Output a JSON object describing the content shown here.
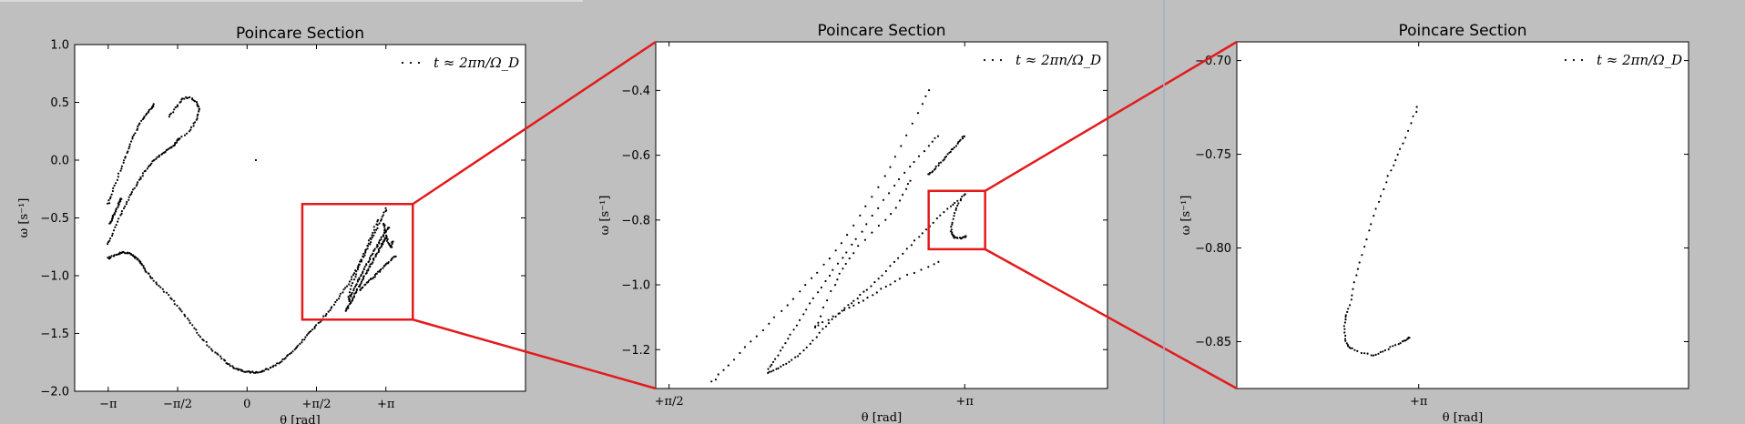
{
  "colors": {
    "background": "#bfbfbf",
    "plot_bg": "#ffffff",
    "marker": "#000000",
    "zoom_box": "#e31a1c"
  },
  "chart_data": [
    {
      "type": "scatter",
      "title": "Poincare Section",
      "xlabel": "θ [rad]",
      "ylabel": "ω [s⁻¹]",
      "legend": {
        "label": "t ≈ 2πn/Ω_D",
        "placement": "top-right"
      },
      "xlim": [
        -3.9,
        6.3
      ],
      "ylim": [
        -2.0,
        1.0
      ],
      "xticks": [
        {
          "v": -3.1416,
          "label": "−π"
        },
        {
          "v": -1.5708,
          "label": "−π/2"
        },
        {
          "v": 0,
          "label": "0"
        },
        {
          "v": 1.5708,
          "label": "+π/2"
        },
        {
          "v": 3.1416,
          "label": "+π"
        }
      ],
      "yticks": [
        {
          "v": 1.0,
          "label": "1.0"
        },
        {
          "v": 0.5,
          "label": "0.5"
        },
        {
          "v": 0.0,
          "label": "0.0"
        },
        {
          "v": -0.5,
          "label": "−0.5"
        },
        {
          "v": -1.0,
          "label": "−1.0"
        },
        {
          "v": -1.5,
          "label": "−1.5"
        },
        {
          "v": -2.0,
          "label": "−2.0"
        }
      ],
      "zoom_box": {
        "x": [
          1.25,
          3.75
        ],
        "y": [
          -1.38,
          -0.38
        ]
      },
      "curves": [
        {
          "points": [
            [
              -3.14,
              -0.38
            ],
            [
              -2.8,
              -0.02
            ],
            [
              -2.45,
              0.3
            ],
            [
              -2.1,
              0.48
            ]
          ],
          "n": 50
        },
        {
          "points": [
            [
              -3.1,
              -0.55
            ],
            [
              -2.85,
              -0.33
            ]
          ],
          "n": 30
        },
        {
          "points": [
            [
              -3.14,
              -0.72
            ],
            [
              -2.8,
              -0.42
            ],
            [
              -2.45,
              -0.18
            ],
            [
              -2.1,
              0.0
            ],
            [
              -1.75,
              0.1
            ],
            [
              -1.55,
              0.18
            ]
          ],
          "n": 70
        },
        {
          "points": [
            [
              -1.55,
              0.18
            ],
            [
              -1.3,
              0.26
            ],
            [
              -1.15,
              0.35
            ],
            [
              -1.08,
              0.44
            ],
            [
              -1.15,
              0.5
            ],
            [
              -1.3,
              0.54
            ],
            [
              -1.45,
              0.53
            ],
            [
              -1.6,
              0.46
            ],
            [
              -1.75,
              0.38
            ]
          ],
          "n": 45
        },
        {
          "points": [
            [
              -3.14,
              -0.85
            ],
            [
              -2.8,
              -0.8
            ],
            [
              -2.5,
              -0.85
            ],
            [
              -2.2,
              -1.0
            ],
            [
              -1.6,
              -1.25
            ],
            [
              -1.0,
              -1.55
            ],
            [
              -0.4,
              -1.77
            ],
            [
              0.0,
              -1.83
            ],
            [
              0.4,
              -1.82
            ],
            [
              0.9,
              -1.7
            ],
            [
              1.4,
              -1.5
            ],
            [
              1.9,
              -1.28
            ],
            [
              2.4,
              -1.0
            ],
            [
              2.8,
              -0.7
            ],
            [
              3.15,
              -0.42
            ]
          ],
          "n": 220
        },
        {
          "points": [
            [
              2.25,
              -1.3
            ],
            [
              2.45,
              -1.15
            ],
            [
              2.7,
              -0.97
            ],
            [
              2.95,
              -0.8
            ],
            [
              3.14,
              -0.67
            ]
          ],
          "n": 60
        },
        {
          "points": [
            [
              2.3,
              -1.22
            ],
            [
              2.5,
              -1.05
            ],
            [
              2.75,
              -0.87
            ],
            [
              3.0,
              -0.7
            ],
            [
              3.2,
              -0.58
            ]
          ],
          "n": 55
        },
        {
          "points": [
            [
              3.1,
              -0.55
            ],
            [
              3.12,
              -0.62
            ],
            [
              3.18,
              -0.7
            ],
            [
              3.25,
              -0.75
            ],
            [
              3.3,
              -0.7
            ]
          ],
          "n": 25
        },
        {
          "points": [
            [
              2.3,
              -1.18
            ],
            [
              2.45,
              -1.0
            ],
            [
              2.6,
              -0.85
            ],
            [
              2.78,
              -0.68
            ],
            [
              2.95,
              -0.52
            ]
          ],
          "n": 30
        },
        {
          "points": [
            [
              2.55,
              -1.13
            ],
            [
              2.75,
              -1.05
            ],
            [
              2.95,
              -0.98
            ],
            [
              3.15,
              -0.9
            ],
            [
              3.35,
              -0.83
            ]
          ],
          "n": 35
        }
      ],
      "points": [
        [
          0.2,
          0.0
        ]
      ]
    },
    {
      "type": "scatter",
      "title": "Poincare Section",
      "xlabel": "θ [rad]",
      "ylabel": "ω [s⁻¹]",
      "legend": {
        "label": "t ≈ 2πn/Ω_D",
        "placement": "top-right"
      },
      "xlim": [
        1.5,
        3.9
      ],
      "ylim": [
        -1.32,
        -0.25
      ],
      "xticks": [
        {
          "v": 1.5708,
          "label": "+π/2"
        },
        {
          "v": 3.1416,
          "label": "+π"
        }
      ],
      "yticks": [
        {
          "v": -0.4,
          "label": "−0.4"
        },
        {
          "v": -0.6,
          "label": "−0.6"
        },
        {
          "v": -0.8,
          "label": "−0.8"
        },
        {
          "v": -1.0,
          "label": "−1.0"
        },
        {
          "v": -1.2,
          "label": "−1.2"
        }
      ],
      "zoom_box": {
        "x": [
          2.95,
          3.25
        ],
        "y": [
          -0.89,
          -0.71
        ]
      },
      "curves": [
        {
          "points": [
            [
              1.8,
              -1.3
            ],
            [
              2.0,
              -1.18
            ],
            [
              2.25,
              -1.03
            ],
            [
              2.5,
              -0.86
            ],
            [
              2.75,
              -0.63
            ],
            [
              2.95,
              -0.4
            ]
          ],
          "n": 40
        },
        {
          "points": [
            [
              2.1,
              -1.26
            ],
            [
              2.2,
              -1.17
            ],
            [
              2.35,
              -1.03
            ],
            [
              2.55,
              -0.87
            ],
            [
              2.8,
              -0.67
            ],
            [
              3.0,
              -0.54
            ]
          ],
          "n": 45
        },
        {
          "points": [
            [
              2.1,
              -1.27
            ],
            [
              2.25,
              -1.22
            ],
            [
              2.45,
              -1.1
            ],
            [
              2.65,
              -1.0
            ],
            [
              2.9,
              -0.85
            ],
            [
              3.1,
              -0.74
            ]
          ],
          "n": 60
        },
        {
          "points": [
            [
              2.95,
              -0.66
            ],
            [
              3.05,
              -0.6
            ],
            [
              3.14,
              -0.54
            ]
          ],
          "n": 30
        },
        {
          "points": [
            [
              2.35,
              -1.13
            ],
            [
              2.45,
              -1.0
            ],
            [
              2.55,
              -0.9
            ],
            [
              2.75,
              -0.78
            ],
            [
              2.85,
              -0.68
            ]
          ],
          "n": 25
        },
        {
          "points": [
            [
              2.35,
              -1.13
            ],
            [
              2.5,
              -1.08
            ],
            [
              2.65,
              -1.03
            ],
            [
              2.8,
              -0.98
            ],
            [
              3.0,
              -0.93
            ]
          ],
          "n": 25
        },
        {
          "points": [
            [
              3.14,
              -0.72
            ],
            [
              3.1,
              -0.76
            ],
            [
              3.07,
              -0.82
            ],
            [
              3.08,
              -0.85
            ],
            [
              3.12,
              -0.855
            ],
            [
              3.15,
              -0.85
            ]
          ],
          "n": 35
        }
      ]
    },
    {
      "type": "scatter",
      "title": "Poincare Section",
      "xlabel": "θ [rad]",
      "ylabel": "ω [s⁻¹]",
      "legend": {
        "label": "t ≈ 2πn/Ω_D",
        "placement": "top-right"
      },
      "xlim": [
        2.9,
        3.5
      ],
      "ylim": [
        -0.875,
        -0.69
      ],
      "xticks": [
        {
          "v": 3.1416,
          "label": "+π"
        }
      ],
      "yticks": [
        {
          "v": -0.7,
          "label": "−0.70"
        },
        {
          "v": -0.75,
          "label": "−0.75"
        },
        {
          "v": -0.8,
          "label": "−0.80"
        },
        {
          "v": -0.85,
          "label": "−0.85"
        }
      ],
      "curves": [
        {
          "points": [
            [
              3.14,
              -0.725
            ],
            [
              3.12,
              -0.745
            ],
            [
              3.1,
              -0.763
            ],
            [
              3.08,
              -0.785
            ],
            [
              3.062,
              -0.81
            ],
            [
              3.05,
              -0.83
            ],
            [
              3.043,
              -0.84
            ],
            [
              3.045,
              -0.85
            ],
            [
              3.055,
              -0.854
            ],
            [
              3.08,
              -0.857
            ],
            [
              3.1,
              -0.854
            ],
            [
              3.12,
              -0.85
            ],
            [
              3.13,
              -0.848
            ]
          ],
          "n": 75
        }
      ]
    }
  ]
}
